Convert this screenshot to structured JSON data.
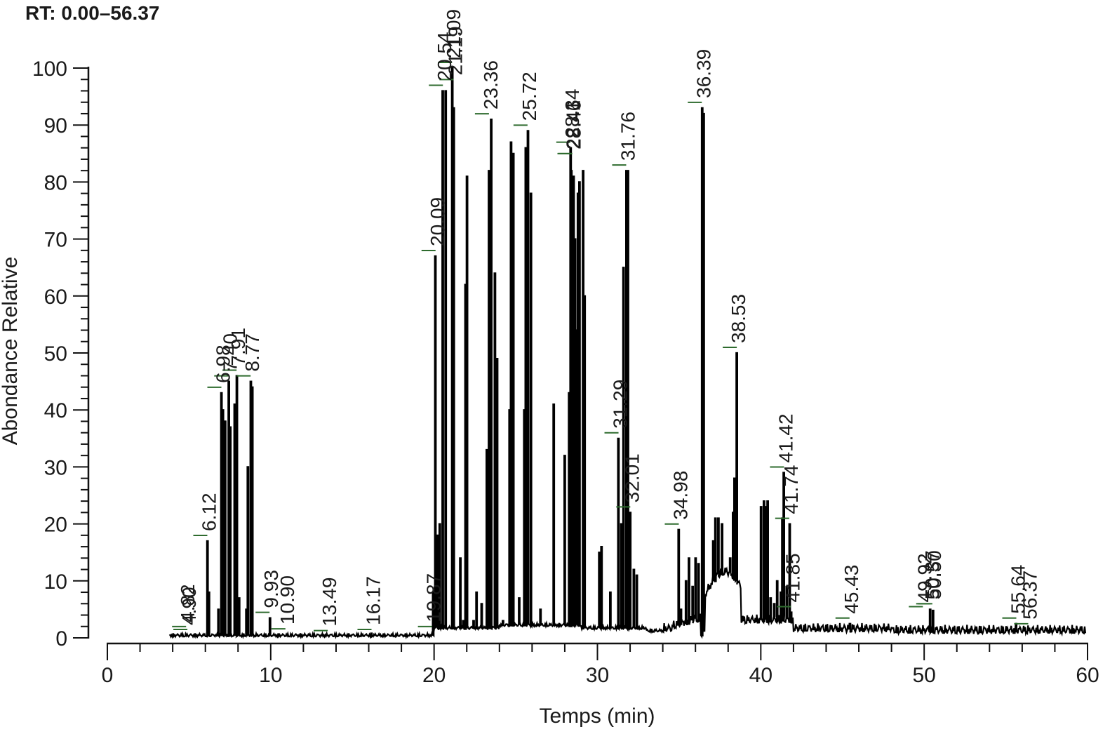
{
  "chart_data": {
    "type": "line",
    "title": "RT: 0.00–56.37",
    "xlabel": "Temps (min)",
    "ylabel": "Abondance Relative",
    "xlim": [
      0,
      60
    ],
    "ylim": [
      0,
      100
    ],
    "x_ticks_major": [
      0,
      10,
      20,
      30,
      40,
      50,
      60
    ],
    "x_minor_step": 2,
    "y_ticks_major": [
      0,
      10,
      20,
      30,
      40,
      50,
      60,
      70,
      80,
      90,
      100
    ],
    "y_minor_step": 2,
    "grid": false,
    "legend": "none",
    "colors": {
      "trace": "#000000",
      "leader": "#2e6b2e"
    },
    "peak_labels": [
      {
        "label": "4.82",
        "rt": 4.82,
        "y": 1.0
      },
      {
        "label": "4.90",
        "rt": 4.9,
        "y": 0.5
      },
      {
        "label": "6.12",
        "rt": 6.12,
        "y": 17
      },
      {
        "label": "6.98",
        "rt": 6.98,
        "y": 43
      },
      {
        "label": "7.40",
        "rt": 7.4,
        "y": 45
      },
      {
        "label": "7.91",
        "rt": 7.91,
        "y": 46
      },
      {
        "label": "8.77",
        "rt": 8.77,
        "y": 45
      },
      {
        "label": "9.93",
        "rt": 9.93,
        "y": 3.5
      },
      {
        "label": "10.90",
        "rt": 10.9,
        "y": 0.6
      },
      {
        "label": "13.49",
        "rt": 13.49,
        "y": 0.3
      },
      {
        "label": "16.17",
        "rt": 16.17,
        "y": 0.5
      },
      {
        "label": "19.87",
        "rt": 19.87,
        "y": 1.0
      },
      {
        "label": "20.09",
        "rt": 20.09,
        "y": 67
      },
      {
        "label": "20.54",
        "rt": 20.54,
        "y": 96
      },
      {
        "label": "21.09",
        "rt": 21.09,
        "y": 100
      },
      {
        "label": "21.19",
        "rt": 21.19,
        "y": 97
      },
      {
        "label": "23.36",
        "rt": 23.36,
        "y": 91
      },
      {
        "label": "25.72",
        "rt": 25.72,
        "y": 89
      },
      {
        "label": "28.34",
        "rt": 28.34,
        "y": 86
      },
      {
        "label": "28.41",
        "rt": 28.41,
        "y": 84
      },
      {
        "label": "28.46",
        "rt": 28.46,
        "y": 84
      },
      {
        "label": "31.29",
        "rt": 31.29,
        "y": 35
      },
      {
        "label": "31.76",
        "rt": 31.76,
        "y": 82
      },
      {
        "label": "32.01",
        "rt": 32.01,
        "y": 22
      },
      {
        "label": "34.98",
        "rt": 34.98,
        "y": 19
      },
      {
        "label": "36.39",
        "rt": 36.39,
        "y": 93
      },
      {
        "label": "38.53",
        "rt": 38.53,
        "y": 50
      },
      {
        "label": "41.42",
        "rt": 41.42,
        "y": 29
      },
      {
        "label": "41.74",
        "rt": 41.74,
        "y": 20
      },
      {
        "label": "41.85",
        "rt": 41.85,
        "y": 4.5
      },
      {
        "label": "45.43",
        "rt": 45.43,
        "y": 2.5
      },
      {
        "label": "49.92",
        "rt": 49.92,
        "y": 4.5
      },
      {
        "label": "50.37",
        "rt": 50.37,
        "y": 5.0
      },
      {
        "label": "50.50",
        "rt": 50.5,
        "y": 5.0
      },
      {
        "label": "55.64",
        "rt": 55.64,
        "y": 2.5
      },
      {
        "label": "56.37",
        "rt": 56.37,
        "y": 1.5
      }
    ],
    "peaks": [
      [
        6.12,
        17
      ],
      [
        6.2,
        8
      ],
      [
        6.8,
        5
      ],
      [
        6.98,
        43
      ],
      [
        7.05,
        40
      ],
      [
        7.2,
        38
      ],
      [
        7.4,
        45
      ],
      [
        7.5,
        37
      ],
      [
        7.8,
        41
      ],
      [
        7.91,
        46
      ],
      [
        8.05,
        7
      ],
      [
        8.5,
        5
      ],
      [
        8.6,
        30
      ],
      [
        8.77,
        45
      ],
      [
        8.85,
        44
      ],
      [
        9.93,
        3.5
      ],
      [
        16.17,
        0.8
      ],
      [
        19.95,
        8
      ],
      [
        20.09,
        67
      ],
      [
        20.2,
        18
      ],
      [
        20.35,
        20
      ],
      [
        20.54,
        96
      ],
      [
        20.7,
        96
      ],
      [
        21.09,
        100
      ],
      [
        21.19,
        93
      ],
      [
        21.6,
        14
      ],
      [
        21.8,
        3
      ],
      [
        21.9,
        62
      ],
      [
        22.0,
        81
      ],
      [
        22.4,
        3
      ],
      [
        22.6,
        8
      ],
      [
        22.9,
        6
      ],
      [
        23.2,
        33
      ],
      [
        23.36,
        82
      ],
      [
        23.5,
        91
      ],
      [
        23.7,
        64
      ],
      [
        23.85,
        49
      ],
      [
        24.2,
        3
      ],
      [
        24.6,
        40
      ],
      [
        24.7,
        87
      ],
      [
        24.85,
        85
      ],
      [
        25.2,
        7
      ],
      [
        25.5,
        40
      ],
      [
        25.6,
        86
      ],
      [
        25.72,
        89
      ],
      [
        25.9,
        78
      ],
      [
        26.5,
        5
      ],
      [
        27.3,
        41
      ],
      [
        28.0,
        32
      ],
      [
        28.25,
        43
      ],
      [
        28.34,
        86
      ],
      [
        28.41,
        82
      ],
      [
        28.55,
        81
      ],
      [
        28.6,
        70
      ],
      [
        28.7,
        54
      ],
      [
        28.8,
        78
      ],
      [
        28.9,
        80
      ],
      [
        29.1,
        82
      ],
      [
        29.2,
        60
      ],
      [
        30.1,
        15
      ],
      [
        30.25,
        16
      ],
      [
        30.8,
        8
      ],
      [
        31.29,
        35
      ],
      [
        31.45,
        20
      ],
      [
        31.6,
        65
      ],
      [
        31.76,
        82
      ],
      [
        31.85,
        82
      ],
      [
        32.01,
        22
      ],
      [
        32.2,
        12
      ],
      [
        32.4,
        11
      ],
      [
        34.98,
        19
      ],
      [
        35.1,
        5
      ],
      [
        35.4,
        10
      ],
      [
        35.6,
        14
      ],
      [
        35.8,
        9
      ],
      [
        36.0,
        14
      ],
      [
        36.2,
        13
      ],
      [
        36.39,
        93
      ],
      [
        36.5,
        92
      ],
      [
        36.8,
        5
      ],
      [
        37.1,
        17
      ],
      [
        37.2,
        21
      ],
      [
        37.4,
        21
      ],
      [
        37.6,
        20
      ],
      [
        37.8,
        10
      ],
      [
        38.1,
        14
      ],
      [
        38.3,
        22
      ],
      [
        38.4,
        28
      ],
      [
        38.53,
        50
      ],
      [
        38.7,
        5
      ],
      [
        40.0,
        23
      ],
      [
        40.2,
        24
      ],
      [
        40.3,
        23
      ],
      [
        40.4,
        24
      ],
      [
        40.6,
        7
      ],
      [
        40.8,
        6
      ],
      [
        41.0,
        10
      ],
      [
        41.2,
        8
      ],
      [
        41.3,
        21
      ],
      [
        41.42,
        29
      ],
      [
        41.6,
        9
      ],
      [
        41.74,
        20
      ],
      [
        41.85,
        4.5
      ],
      [
        45.43,
        2.5
      ],
      [
        50.37,
        5.0
      ],
      [
        50.55,
        4.8
      ],
      [
        55.64,
        2.5
      ]
    ]
  }
}
